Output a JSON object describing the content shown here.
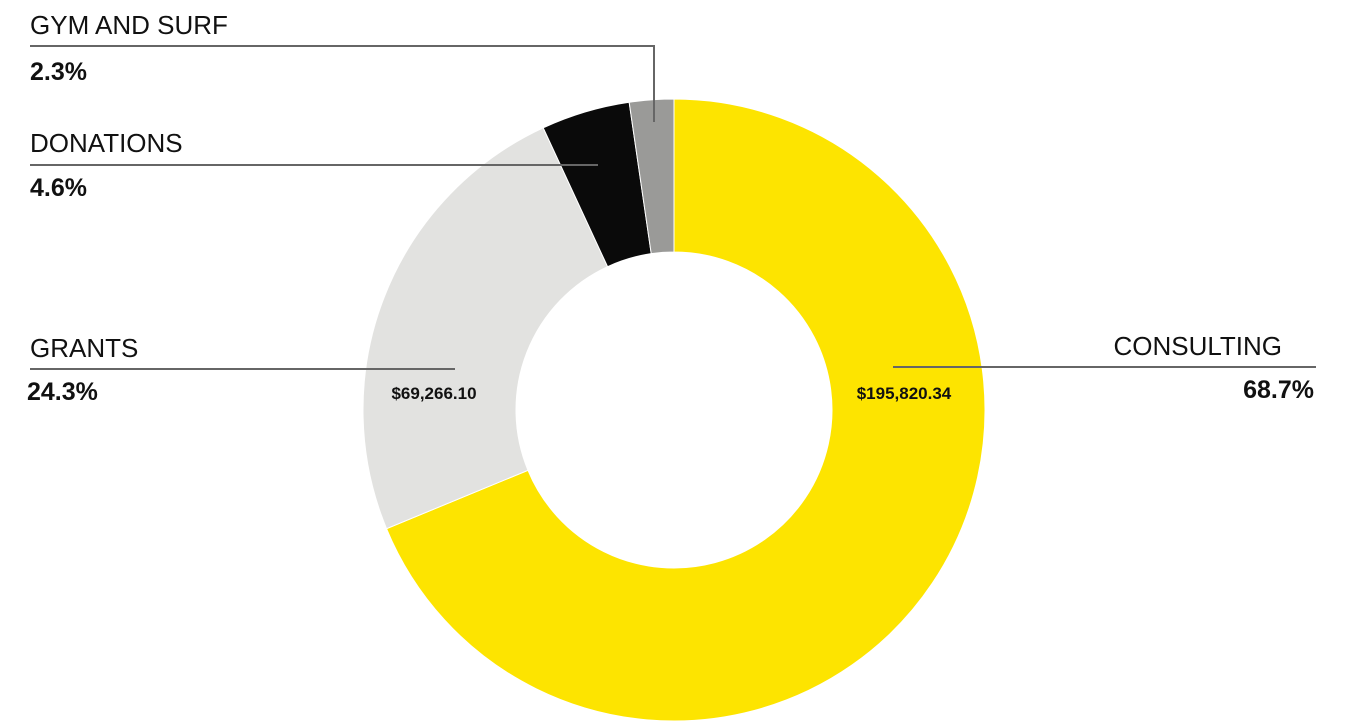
{
  "chart_data": {
    "type": "pie",
    "variant": "donut",
    "categories": [
      "CONSULTING",
      "GRANTS",
      "DONATIONS",
      "GYM AND SURF"
    ],
    "values": [
      68.7,
      24.3,
      4.6,
      2.3
    ],
    "value_labels": [
      "68.7%",
      "24.3%",
      "4.6%",
      "2.3%"
    ],
    "amount_labels": [
      "$195,820.34",
      "$69,266.10",
      "",
      ""
    ],
    "colors": [
      "#FDE400",
      "#E2E2E0",
      "#0A0A0A",
      "#9A9A98"
    ],
    "legend": "leader-line labels outside the ring"
  }
}
